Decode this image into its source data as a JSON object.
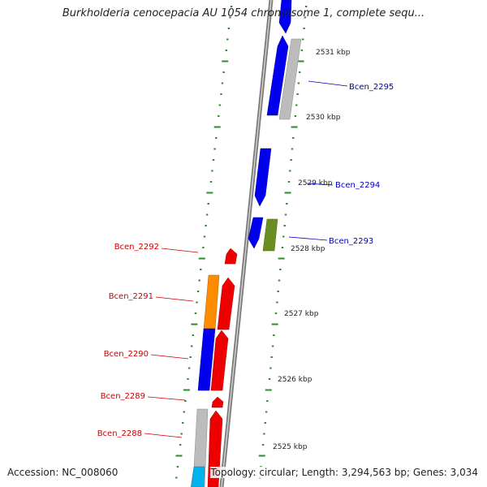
{
  "title": "Burkholderia cenocepacia AU 1054 chromosome 1, complete sequ...",
  "footer": {
    "accession": "Accession: NC_008060",
    "summary": "Topology: circular; Length: 3,294,563 bp; Genes: 3,034"
  },
  "colors": {
    "backbone": "#888888",
    "tick": "#2e8b2e",
    "forward_label": "#0000bb",
    "reverse_label": "#cc0000",
    "blue": "#0000ee",
    "gray": "#b3b3b3",
    "olive": "#6b8e23",
    "red": "#ee0000",
    "orange": "#ff8c00",
    "cyan": "#00b4f0"
  },
  "scale_labels": [
    "2531 kbp",
    "2530 kbp",
    "2529 kbp",
    "2528 kbp",
    "2527 kbp",
    "2526 kbp",
    "2525 kbp"
  ],
  "gene_labels": {
    "forward": [
      "Bcen_2295",
      "Bcen_2294",
      "Bcen_2293"
    ],
    "reverse": [
      "Bcen_2292",
      "Bcen_2291",
      "Bcen_2290",
      "Bcen_2289",
      "Bcen_2288"
    ]
  }
}
